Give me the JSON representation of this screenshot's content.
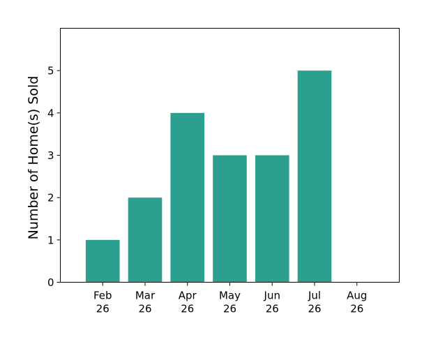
{
  "chart_data": {
    "type": "bar",
    "categories": [
      "Feb 26",
      "Mar 26",
      "Apr 26",
      "May 26",
      "Jun 26",
      "Jul 26"
    ],
    "values": [
      1,
      2,
      4,
      3,
      3,
      5
    ],
    "x_ticks": [
      {
        "line1": "Feb",
        "line2": "26"
      },
      {
        "line1": "Mar",
        "line2": "26"
      },
      {
        "line1": "Apr",
        "line2": "26"
      },
      {
        "line1": "May",
        "line2": "26"
      },
      {
        "line1": "Jun",
        "line2": "26"
      },
      {
        "line1": "Jul",
        "line2": "26"
      },
      {
        "line1": "Aug",
        "line2": "26"
      }
    ],
    "y_ticks": [
      0,
      1,
      2,
      3,
      4,
      5
    ],
    "ylim": [
      0,
      6
    ],
    "title": "",
    "xlabel": "",
    "ylabel": "Number of Home(s) Sold",
    "bar_color": "#2ca08f",
    "grid": false,
    "legend": "none"
  }
}
